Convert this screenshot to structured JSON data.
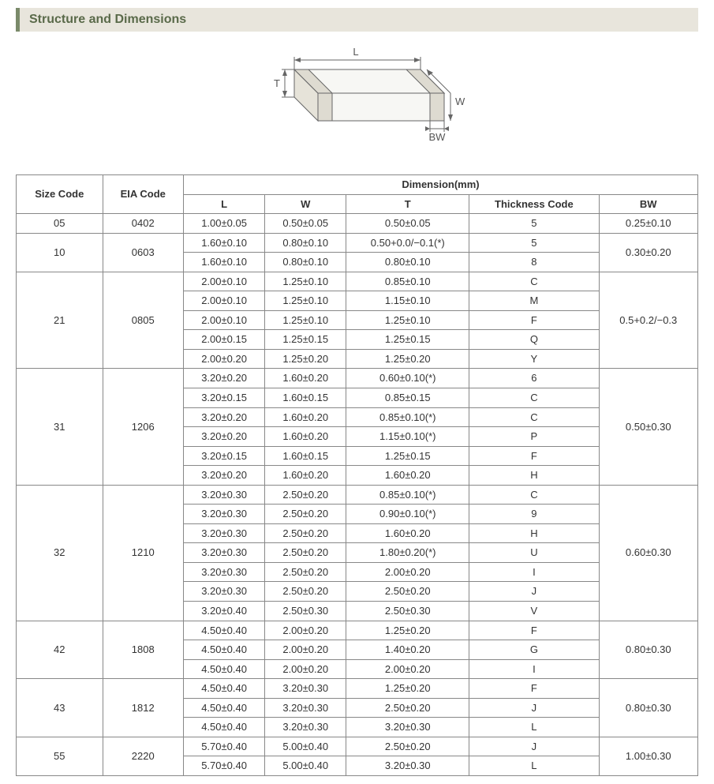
{
  "title": "Structure and Dimensions",
  "diagram": {
    "labels": {
      "L": "L",
      "W": "W",
      "T": "T",
      "BW": "BW"
    },
    "stroke": "#666666",
    "fill": "#f7f7f4",
    "fill_dark": "#dedbd1",
    "label_color": "#555555",
    "label_fontsize": 13
  },
  "table": {
    "header": {
      "size_code": "Size Code",
      "eia_code": "EIA Code",
      "dimension": "Dimension(mm)",
      "L": "L",
      "W": "W",
      "T": "T",
      "thickness_code": "Thickness Code",
      "BW": "BW"
    },
    "groups": [
      {
        "size_code": "05",
        "eia_code": "0402",
        "rows": [
          {
            "L": "1.00±0.05",
            "W": "0.50±0.05",
            "T": "0.50±0.05",
            "tc": "5"
          }
        ],
        "bw": "0.25±0.10"
      },
      {
        "size_code": "10",
        "eia_code": "0603",
        "rows": [
          {
            "L": "1.60±0.10",
            "W": "0.80±0.10",
            "T": "0.50+0.0/−0.1(*)",
            "tc": "5"
          },
          {
            "L": "1.60±0.10",
            "W": "0.80±0.10",
            "T": "0.80±0.10",
            "tc": "8"
          }
        ],
        "bw": "0.30±0.20"
      },
      {
        "size_code": "21",
        "eia_code": "0805",
        "rows": [
          {
            "L": "2.00±0.10",
            "W": "1.25±0.10",
            "T": "0.85±0.10",
            "tc": "C"
          },
          {
            "L": "2.00±0.10",
            "W": "1.25±0.10",
            "T": "1.15±0.10",
            "tc": "M"
          },
          {
            "L": "2.00±0.10",
            "W": "1.25±0.10",
            "T": "1.25±0.10",
            "tc": "F"
          },
          {
            "L": "2.00±0.15",
            "W": "1.25±0.15",
            "T": "1.25±0.15",
            "tc": "Q"
          },
          {
            "L": "2.00±0.20",
            "W": "1.25±0.20",
            "T": "1.25±0.20",
            "tc": "Y"
          }
        ],
        "bw": "0.5+0.2/−0.3"
      },
      {
        "size_code": "31",
        "eia_code": "1206",
        "rows": [
          {
            "L": "3.20±0.20",
            "W": "1.60±0.20",
            "T": "0.60±0.10(*)",
            "tc": "6"
          },
          {
            "L": "3.20±0.15",
            "W": "1.60±0.15",
            "T": "0.85±0.15",
            "tc": "C"
          },
          {
            "L": "3.20±0.20",
            "W": "1.60±0.20",
            "T": "0.85±0.10(*)",
            "tc": "C"
          },
          {
            "L": "3.20±0.20",
            "W": "1.60±0.20",
            "T": "1.15±0.10(*)",
            "tc": "P"
          },
          {
            "L": "3.20±0.15",
            "W": "1.60±0.15",
            "T": "1.25±0.15",
            "tc": "F"
          },
          {
            "L": "3.20±0.20",
            "W": "1.60±0.20",
            "T": "1.60±0.20",
            "tc": "H"
          }
        ],
        "bw": "0.50±0.30"
      },
      {
        "size_code": "32",
        "eia_code": "1210",
        "rows": [
          {
            "L": "3.20±0.30",
            "W": "2.50±0.20",
            "T": "0.85±0.10(*)",
            "tc": "C"
          },
          {
            "L": "3.20±0.30",
            "W": "2.50±0.20",
            "T": "0.90±0.10(*)",
            "tc": "9"
          },
          {
            "L": "3.20±0.30",
            "W": "2.50±0.20",
            "T": "1.60±0.20",
            "tc": "H"
          },
          {
            "L": "3.20±0.30",
            "W": "2.50±0.20",
            "T": "1.80±0.20(*)",
            "tc": "U"
          },
          {
            "L": "3.20±0.30",
            "W": "2.50±0.20",
            "T": "2.00±0.20",
            "tc": "I"
          },
          {
            "L": "3.20±0.30",
            "W": "2.50±0.20",
            "T": "2.50±0.20",
            "tc": "J"
          },
          {
            "L": "3.20±0.40",
            "W": "2.50±0.30",
            "T": "2.50±0.30",
            "tc": "V"
          }
        ],
        "bw": "0.60±0.30"
      },
      {
        "size_code": "42",
        "eia_code": "1808",
        "rows": [
          {
            "L": "4.50±0.40",
            "W": "2.00±0.20",
            "T": "1.25±0.20",
            "tc": "F"
          },
          {
            "L": "4.50±0.40",
            "W": "2.00±0.20",
            "T": "1.40±0.20",
            "tc": "G"
          },
          {
            "L": "4.50±0.40",
            "W": "2.00±0.20",
            "T": "2.00±0.20",
            "tc": "I"
          }
        ],
        "bw": "0.80±0.30"
      },
      {
        "size_code": "43",
        "eia_code": "1812",
        "rows": [
          {
            "L": "4.50±0.40",
            "W": "3.20±0.30",
            "T": "1.25±0.20",
            "tc": "F"
          },
          {
            "L": "4.50±0.40",
            "W": "3.20±0.30",
            "T": "2.50±0.20",
            "tc": "J"
          },
          {
            "L": "4.50±0.40",
            "W": "3.20±0.30",
            "T": "3.20±0.30",
            "tc": "L"
          }
        ],
        "bw": "0.80±0.30"
      },
      {
        "size_code": "55",
        "eia_code": "2220",
        "rows": [
          {
            "L": "5.70±0.40",
            "W": "5.00±0.40",
            "T": "2.50±0.20",
            "tc": "J"
          },
          {
            "L": "5.70±0.40",
            "W": "5.00±0.40",
            "T": "3.20±0.30",
            "tc": "L"
          }
        ],
        "bw": "1.00±0.30"
      }
    ]
  }
}
